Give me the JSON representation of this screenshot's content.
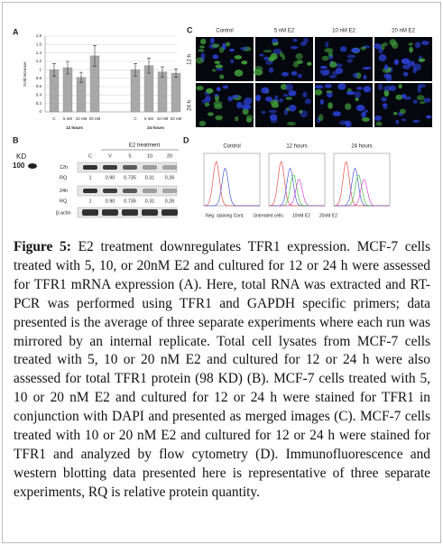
{
  "chart_data": {
    "type": "bar",
    "label": "A",
    "y_label": "Fold Increase",
    "categories": [
      "C",
      "5 nM",
      "10 nM",
      "20 nM",
      "C",
      "5 nM",
      "10 nM",
      "20 nM"
    ],
    "group_labels": [
      "12 hours",
      "24 hours"
    ],
    "values": [
      1.0,
      1.05,
      0.82,
      1.33,
      1.0,
      1.1,
      0.95,
      0.92
    ],
    "errors": [
      0.15,
      0.15,
      0.12,
      0.25,
      0.15,
      0.18,
      0.12,
      0.1
    ],
    "color": "#a8a8a8",
    "ylim": [
      0,
      1.8
    ],
    "yticks": [
      0,
      0.2,
      0.4,
      0.6,
      0.8,
      1,
      1.2,
      1.4,
      1.6,
      1.8
    ],
    "grid": true
  },
  "blot": {
    "label": "B",
    "heading": "E2 treatment",
    "kd_label": "KD",
    "kd_value": "100",
    "lanes": [
      "C",
      "V",
      "5",
      "10",
      "20"
    ],
    "rows": [
      {
        "label": "12h",
        "rq_label": "RQ",
        "rq": [
          "1",
          "0.90",
          "0.735",
          "0.31",
          "0.26"
        ]
      },
      {
        "label": "24h",
        "rq_label": "RQ",
        "rq": [
          "1",
          "0.90",
          "0.735",
          "0.31",
          "0.26"
        ]
      }
    ],
    "loading_control": "β-actin"
  },
  "micrographs": {
    "label": "C",
    "columns": [
      "Control",
      "5 nM E2",
      "10 nM E2",
      "20 nM E2"
    ],
    "rows": [
      "12 h",
      "24 h"
    ]
  },
  "flow": {
    "label": "D",
    "panels": [
      "Control",
      "12 hours",
      "24 hours"
    ],
    "legend": [
      {
        "name": "Neg. staining Cont.",
        "color": "#e8312f"
      },
      {
        "name": "Untreated cells",
        "color": "#2b3fd8"
      },
      {
        "name": "10nM E2",
        "color": "#2fb52f"
      },
      {
        "name": "20nM E2",
        "color": "#d12bd1"
      }
    ]
  },
  "caption": {
    "label": "Figure 5:",
    "text": "E2 treatment downregulates TFR1 expression. MCF-7 cells treated with 5, 10, or 20nM E2 and cultured for 12 or 24 h were assessed for TFR1 mRNA expression (A). Here, total RNA was extracted and RT-PCR was performed using TFR1 and GAPDH specific primers; data presented is the average of three separate experiments where each run was mirrored by an internal replicate. Total cell lysates from MCF-7 cells treated with 5, 10 or 20 nM E2 and cultured for 12 or 24 h were also assessed for total TFR1 protein (98 KD) (B). MCF-7 cells treated with 5, 10 or 20 nM E2 and cultured for 12 or 24 h were stained for TFR1 in conjunction with DAPI and presented as merged images (C). MCF-7 cells treated with 10 or 20 nM E2 and cultured for 12 or 24 h were stained for TFR1 and analyzed by flow cytometry (D). Immunofluorescence and western blotting data presented here is representative of three separate experiments, RQ is relative protein quantity."
  }
}
